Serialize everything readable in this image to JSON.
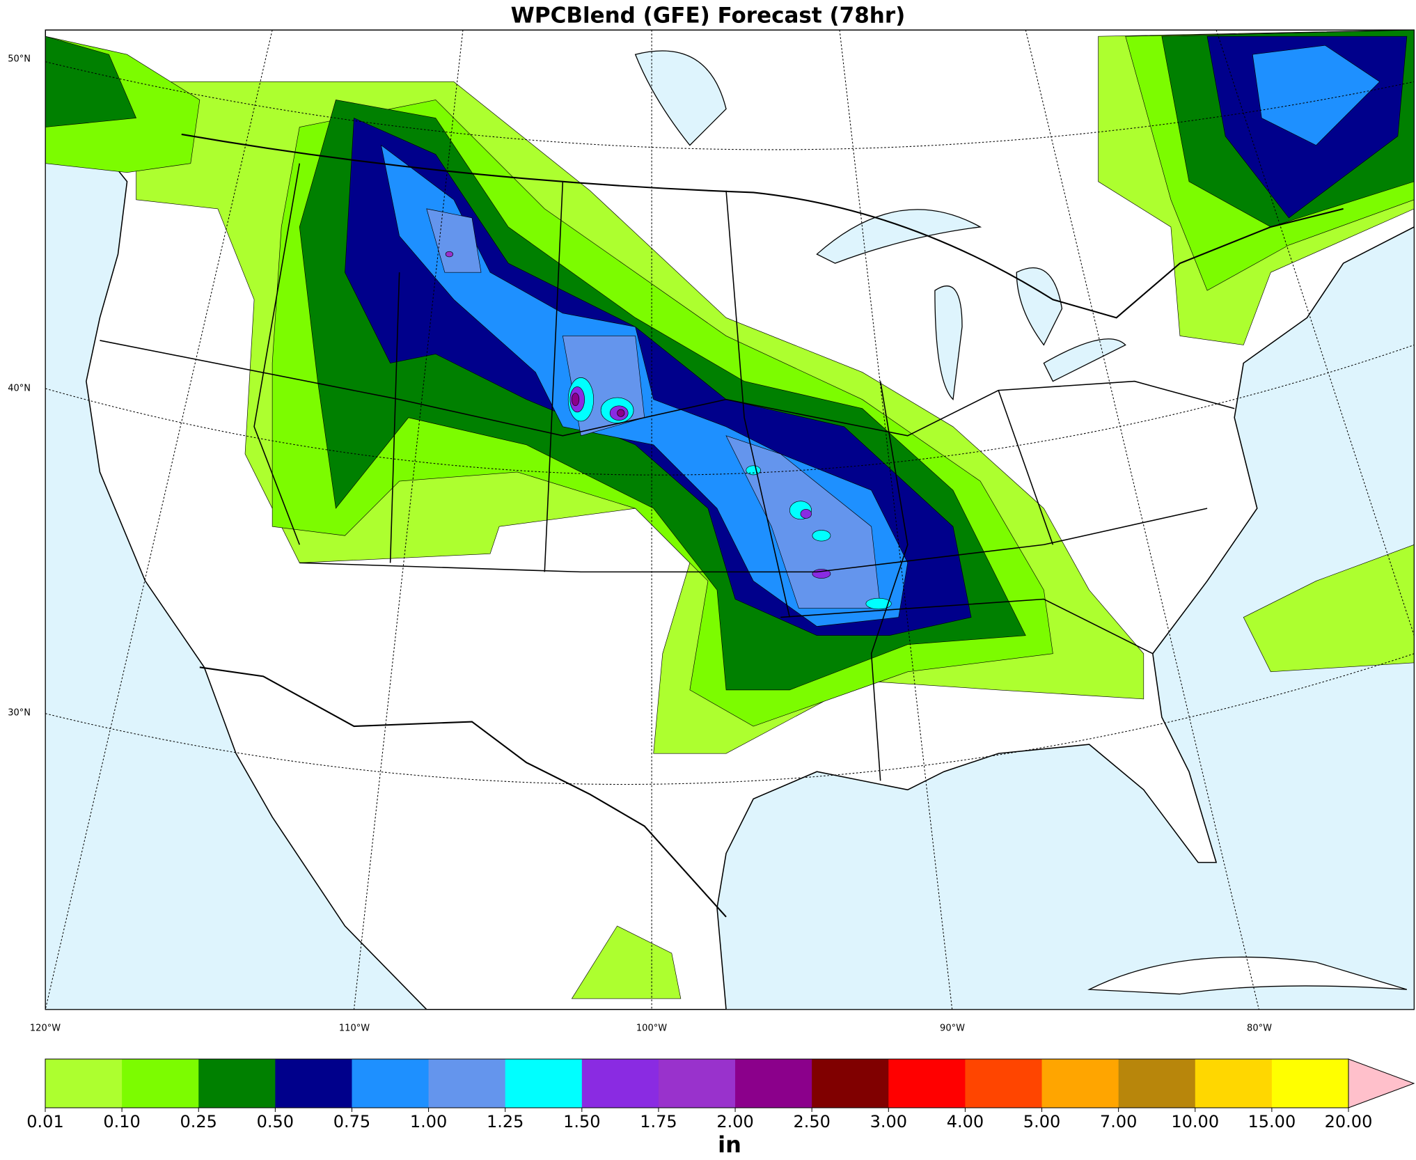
{
  "title": "WPCBlend (GFE) Forecast (78hr)",
  "map": {
    "lat_labels": [
      "50°N",
      "40°N",
      "30°N"
    ],
    "lon_labels": [
      "120°W",
      "110°W",
      "100°W",
      "90°W",
      "80°W"
    ]
  },
  "colorbar": {
    "ticks": [
      {
        "value": 0.01,
        "label": "0.01"
      },
      {
        "value": 0.1,
        "label": "0.10"
      },
      {
        "value": 0.25,
        "label": "0.25"
      },
      {
        "value": 0.5,
        "label": "0.50"
      },
      {
        "value": 0.75,
        "label": "0.75"
      },
      {
        "value": 1,
        "label": "1.00"
      },
      {
        "value": 1.25,
        "label": "1.25"
      },
      {
        "value": 1.5,
        "label": "1.50"
      },
      {
        "value": 1.75,
        "label": "1.75"
      },
      {
        "value": 2,
        "label": "2.00"
      },
      {
        "value": 2.5,
        "label": "2.50"
      },
      {
        "value": 3,
        "label": "3.00"
      },
      {
        "value": 4,
        "label": "4.00"
      },
      {
        "value": 5,
        "label": "5.00"
      },
      {
        "value": 7,
        "label": "7.00"
      },
      {
        "value": 10,
        "label": "10.00"
      },
      {
        "value": 15,
        "label": "15.00"
      },
      {
        "value": 20,
        "label": "20.00"
      }
    ],
    "colors": [
      "#adff2f",
      "#7cfc00",
      "#008000",
      "#00008b",
      "#1e90ff",
      "#6495ed",
      "#00ffff",
      "#8a2be2",
      "#9932cc",
      "#8b008b",
      "#800000",
      "#ff0000",
      "#ff4500",
      "#ffa500",
      "#b8860b",
      "#ffd700",
      "#ffff00"
    ],
    "extend_color": "#ffc0cb",
    "unit": "in"
  }
}
